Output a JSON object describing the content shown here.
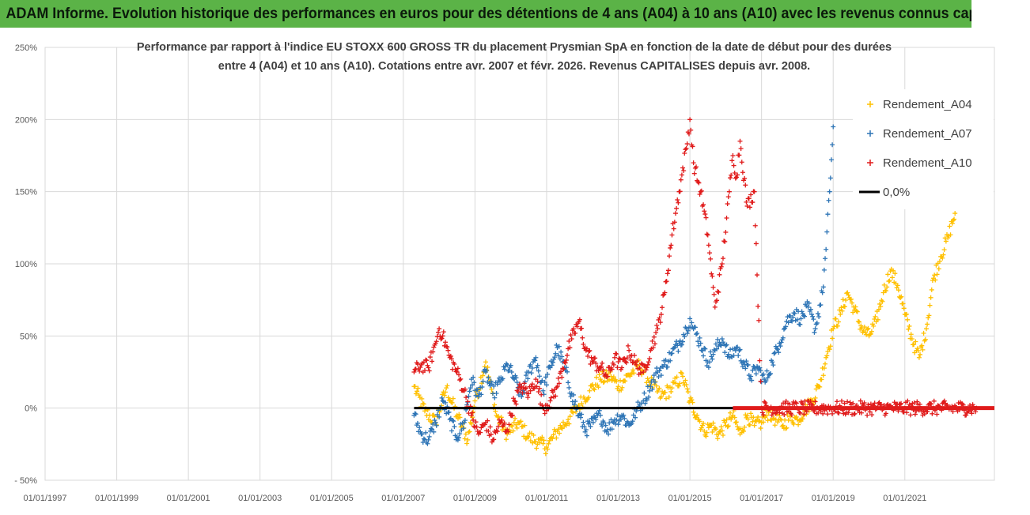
{
  "banner_title": "ADAM Informe. Evolution historique des performances en euros pour des détentions de 4 ans (A04) à 10 ans (A10) avec les revenus connus capitalisés",
  "chart_data": {
    "type": "scatter",
    "title_line1": "Performance par rapport à l'indice EU STOXX 600 GROSS TR  du placement Prysmian SpA en fonction de la date de début pour des durées",
    "title_line2": "entre 4 (A04) et 10 ans (A10). Cotations entre avr. 2007 et févr. 2026. Revenus CAPITALISES depuis avr. 2008.",
    "x_range": [
      1997.0,
      2023.5
    ],
    "y_range": [
      -50,
      250
    ],
    "x_tick_labels": [
      "01/01/1997",
      "01/01/1999",
      "01/01/2001",
      "01/01/2003",
      "01/01/2005",
      "01/01/2007",
      "01/01/2009",
      "01/01/2011",
      "01/01/2013",
      "01/01/2015",
      "01/01/2017",
      "01/01/2019",
      "01/01/2021"
    ],
    "x_tick_values": [
      1997,
      1999,
      2001,
      2003,
      2005,
      2007,
      2009,
      2011,
      2013,
      2015,
      2017,
      2019,
      2021
    ],
    "y_tick_labels": [
      "- 50%",
      "0%",
      "50%",
      "100%",
      "150%",
      "200%",
      "250%"
    ],
    "y_tick_values": [
      -50,
      0,
      50,
      100,
      150,
      200,
      250
    ],
    "legend_position": "top-right",
    "series": [
      {
        "name": "Rendement_A04",
        "color": "#ffc000",
        "marker": "+",
        "points": [
          [
            2007.3,
            15
          ],
          [
            2007.6,
            -2
          ],
          [
            2007.9,
            -10
          ],
          [
            2008.2,
            14
          ],
          [
            2008.5,
            -5
          ],
          [
            2008.8,
            -22
          ],
          [
            2009.0,
            5
          ],
          [
            2009.3,
            32
          ],
          [
            2009.6,
            -5
          ],
          [
            2009.9,
            -18
          ],
          [
            2010.2,
            -10
          ],
          [
            2010.5,
            -20
          ],
          [
            2010.8,
            -24
          ],
          [
            2011.0,
            -27
          ],
          [
            2011.3,
            -16
          ],
          [
            2011.6,
            -8
          ],
          [
            2011.9,
            2
          ],
          [
            2012.2,
            12
          ],
          [
            2012.5,
            20
          ],
          [
            2012.8,
            22
          ],
          [
            2013.0,
            15
          ],
          [
            2013.3,
            23
          ],
          [
            2013.6,
            30
          ],
          [
            2013.9,
            18
          ],
          [
            2014.2,
            8
          ],
          [
            2014.5,
            14
          ],
          [
            2014.8,
            22
          ],
          [
            2015.0,
            5
          ],
          [
            2015.2,
            -5
          ],
          [
            2015.4,
            -16
          ],
          [
            2015.6,
            -12
          ],
          [
            2015.8,
            -18
          ],
          [
            2016.0,
            -12
          ],
          [
            2016.2,
            -5
          ],
          [
            2016.4,
            -18
          ],
          [
            2016.6,
            -5
          ],
          [
            2016.8,
            -12
          ],
          [
            2017.0,
            -10
          ],
          [
            2017.2,
            -3
          ],
          [
            2017.4,
            -8
          ],
          [
            2017.6,
            -12
          ],
          [
            2017.8,
            -6
          ],
          [
            2018.0,
            -8
          ],
          [
            2018.2,
            -2
          ],
          [
            2018.4,
            5
          ],
          [
            2018.6,
            15
          ],
          [
            2018.8,
            35
          ],
          [
            2019.0,
            55
          ],
          [
            2019.2,
            65
          ],
          [
            2019.4,
            80
          ],
          [
            2019.6,
            68
          ],
          [
            2019.8,
            55
          ],
          [
            2020.0,
            50
          ],
          [
            2020.2,
            60
          ],
          [
            2020.4,
            80
          ],
          [
            2020.6,
            95
          ],
          [
            2020.8,
            85
          ],
          [
            2021.0,
            65
          ],
          [
            2021.2,
            48
          ],
          [
            2021.4,
            35
          ],
          [
            2021.6,
            55
          ],
          [
            2021.8,
            90
          ],
          [
            2022.0,
            105
          ],
          [
            2022.2,
            118
          ],
          [
            2022.4,
            135
          ]
        ]
      },
      {
        "name": "Rendement_A07",
        "color": "#2e75b6",
        "marker": "+",
        "points": [
          [
            2007.3,
            -5
          ],
          [
            2007.5,
            -18
          ],
          [
            2007.7,
            -22
          ],
          [
            2007.9,
            -10
          ],
          [
            2008.1,
            5
          ],
          [
            2008.3,
            -8
          ],
          [
            2008.5,
            -20
          ],
          [
            2008.7,
            -10
          ],
          [
            2008.9,
            20
          ],
          [
            2009.1,
            8
          ],
          [
            2009.3,
            25
          ],
          [
            2009.5,
            10
          ],
          [
            2009.7,
            18
          ],
          [
            2009.9,
            30
          ],
          [
            2010.1,
            20
          ],
          [
            2010.3,
            8
          ],
          [
            2010.5,
            25
          ],
          [
            2010.7,
            35
          ],
          [
            2010.9,
            12
          ],
          [
            2011.1,
            28
          ],
          [
            2011.3,
            42
          ],
          [
            2011.5,
            28
          ],
          [
            2011.7,
            10
          ],
          [
            2011.9,
            -5
          ],
          [
            2012.1,
            -15
          ],
          [
            2012.3,
            -10
          ],
          [
            2012.5,
            -5
          ],
          [
            2012.7,
            -15
          ],
          [
            2012.9,
            -8
          ],
          [
            2013.1,
            -5
          ],
          [
            2013.3,
            -12
          ],
          [
            2013.5,
            -2
          ],
          [
            2013.7,
            5
          ],
          [
            2013.9,
            15
          ],
          [
            2014.1,
            25
          ],
          [
            2014.3,
            30
          ],
          [
            2014.5,
            38
          ],
          [
            2014.7,
            45
          ],
          [
            2014.9,
            55
          ],
          [
            2015.0,
            62
          ],
          [
            2015.1,
            55
          ],
          [
            2015.3,
            45
          ],
          [
            2015.5,
            32
          ],
          [
            2015.7,
            40
          ],
          [
            2015.9,
            48
          ],
          [
            2016.1,
            35
          ],
          [
            2016.3,
            42
          ],
          [
            2016.5,
            32
          ],
          [
            2016.7,
            22
          ],
          [
            2016.9,
            28
          ],
          [
            2017.1,
            18
          ],
          [
            2017.3,
            32
          ],
          [
            2017.5,
            45
          ],
          [
            2017.7,
            60
          ],
          [
            2017.9,
            66
          ],
          [
            2018.1,
            62
          ],
          [
            2018.3,
            70
          ],
          [
            2018.5,
            55
          ],
          [
            2018.7,
            80
          ],
          [
            2018.8,
            110
          ],
          [
            2018.9,
            150
          ],
          [
            2019.0,
            195
          ]
        ]
      },
      {
        "name": "Rendement_A10",
        "color": "#e01b1b",
        "marker": "+",
        "points": [
          [
            2007.3,
            25
          ],
          [
            2007.5,
            30
          ],
          [
            2007.7,
            28
          ],
          [
            2007.9,
            45
          ],
          [
            2008.0,
            55
          ],
          [
            2008.1,
            50
          ],
          [
            2008.3,
            35
          ],
          [
            2008.5,
            25
          ],
          [
            2008.7,
            12
          ],
          [
            2008.9,
            -5
          ],
          [
            2009.1,
            -18
          ],
          [
            2009.3,
            -10
          ],
          [
            2009.5,
            -22
          ],
          [
            2009.7,
            -10
          ],
          [
            2009.9,
            -15
          ],
          [
            2010.1,
            5
          ],
          [
            2010.3,
            15
          ],
          [
            2010.5,
            10
          ],
          [
            2010.7,
            20
          ],
          [
            2010.9,
            0
          ],
          [
            2011.1,
            5
          ],
          [
            2011.3,
            15
          ],
          [
            2011.5,
            32
          ],
          [
            2011.7,
            48
          ],
          [
            2011.9,
            60
          ],
          [
            2012.1,
            40
          ],
          [
            2012.3,
            32
          ],
          [
            2012.5,
            28
          ],
          [
            2012.7,
            22
          ],
          [
            2012.9,
            35
          ],
          [
            2013.1,
            28
          ],
          [
            2013.3,
            40
          ],
          [
            2013.5,
            30
          ],
          [
            2013.7,
            25
          ],
          [
            2013.9,
            40
          ],
          [
            2014.1,
            55
          ],
          [
            2014.3,
            80
          ],
          [
            2014.5,
            120
          ],
          [
            2014.7,
            150
          ],
          [
            2014.9,
            180
          ],
          [
            2015.0,
            200
          ],
          [
            2015.1,
            170
          ],
          [
            2015.3,
            150
          ],
          [
            2015.5,
            120
          ],
          [
            2015.7,
            70
          ],
          [
            2015.9,
            100
          ],
          [
            2016.1,
            150
          ],
          [
            2016.2,
            175
          ],
          [
            2016.3,
            160
          ],
          [
            2016.4,
            185
          ],
          [
            2016.6,
            140
          ],
          [
            2016.8,
            150
          ],
          [
            2017.0,
            0
          ],
          [
            2018.0,
            0
          ],
          [
            2019.0,
            0
          ],
          [
            2020.0,
            0
          ],
          [
            2021.0,
            0
          ],
          [
            2022.0,
            0
          ],
          [
            2023.0,
            0
          ]
        ]
      },
      {
        "name": "0,0%",
        "color": "#000000",
        "marker": "line",
        "points": [
          [
            2007.3,
            0
          ],
          [
            2023.5,
            0
          ]
        ]
      }
    ]
  }
}
